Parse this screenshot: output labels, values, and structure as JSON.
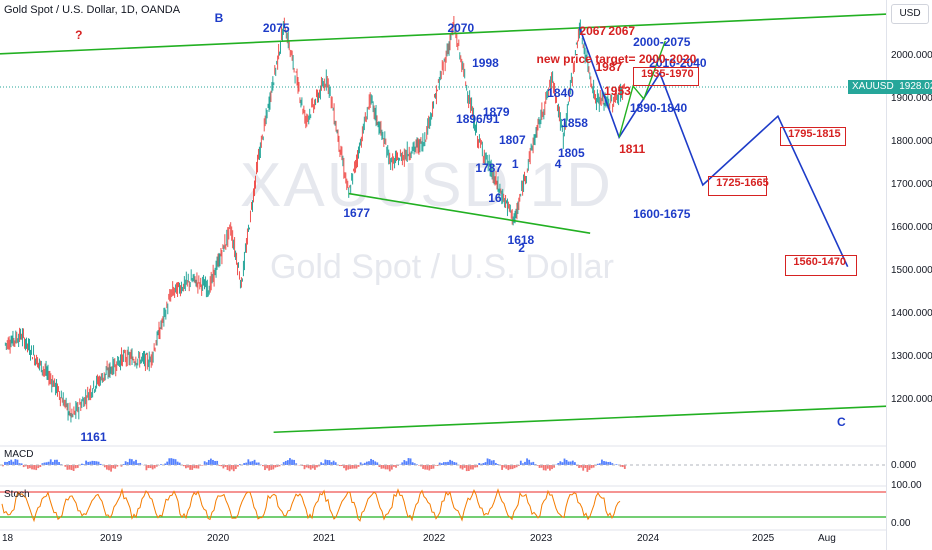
{
  "header": {
    "title": "Gold Spot / U.S. Dollar, 1D, OANDA",
    "currency_button": "USD"
  },
  "watermark": {
    "symbol": "XAUUSD 1D",
    "name": "Gold Spot / U.S. Dollar"
  },
  "current_price": {
    "symbol": "XAUUSD",
    "value": "1928.025",
    "color": "#26a69a"
  },
  "colors": {
    "up": "#26a69a",
    "down": "#ef5350",
    "trend_line": "#22b022",
    "projection": "#1e3cc8",
    "annotation_red": "#d62222"
  },
  "chart_data": {
    "type": "line",
    "title": "Gold Spot / U.S. Dollar, 1D, OANDA",
    "y_axis": {
      "ylim": [
        1125,
        2110
      ],
      "ticks": [
        "2000.000",
        "1900.000",
        "1800.000",
        "1700.000",
        "1600.000",
        "1500.000",
        "1400.000",
        "1300.000",
        "1200.000"
      ]
    },
    "x_axis": {
      "ticks": [
        "18",
        "2019",
        "2020",
        "2021",
        "2022",
        "2023",
        "2024",
        "2025",
        "Aug"
      ]
    },
    "price_swings": [
      {
        "t": 2018.0,
        "v": 1330
      },
      {
        "t": 2018.15,
        "v": 1350
      },
      {
        "t": 2018.3,
        "v": 1290
      },
      {
        "t": 2018.45,
        "v": 1240
      },
      {
        "t": 2018.62,
        "v": 1161
      },
      {
        "t": 2018.85,
        "v": 1240
      },
      {
        "t": 2019.1,
        "v": 1300
      },
      {
        "t": 2019.35,
        "v": 1290
      },
      {
        "t": 2019.55,
        "v": 1450
      },
      {
        "t": 2019.75,
        "v": 1480
      },
      {
        "t": 2019.9,
        "v": 1460
      },
      {
        "t": 2020.1,
        "v": 1600
      },
      {
        "t": 2020.2,
        "v": 1470
      },
      {
        "t": 2020.35,
        "v": 1750
      },
      {
        "t": 2020.6,
        "v": 2075
      },
      {
        "t": 2020.8,
        "v": 1850
      },
      {
        "t": 2021.0,
        "v": 1950
      },
      {
        "t": 2021.2,
        "v": 1677
      },
      {
        "t": 2021.4,
        "v": 1900
      },
      {
        "t": 2021.6,
        "v": 1750
      },
      {
        "t": 2021.9,
        "v": 1800
      },
      {
        "t": 2022.18,
        "v": 2070
      },
      {
        "t": 2022.4,
        "v": 1810
      },
      {
        "t": 2022.6,
        "v": 1690
      },
      {
        "t": 2022.75,
        "v": 1618
      },
      {
        "t": 2022.9,
        "v": 1780
      },
      {
        "t": 2023.1,
        "v": 1950
      },
      {
        "t": 2023.2,
        "v": 1810
      },
      {
        "t": 2023.35,
        "v": 2067
      },
      {
        "t": 2023.5,
        "v": 1900
      },
      {
        "t": 2023.65,
        "v": 1890
      },
      {
        "t": 2023.78,
        "v": 1928
      }
    ],
    "projection_path": [
      {
        "t": 2023.35,
        "v": 2067
      },
      {
        "t": 2023.72,
        "v": 1811
      },
      {
        "t": 2024.1,
        "v": 1960
      },
      {
        "t": 2024.5,
        "v": 1700
      },
      {
        "t": 2025.2,
        "v": 1860
      },
      {
        "t": 2025.85,
        "v": 1510
      }
    ],
    "alt_projection_path": [
      {
        "t": 2023.72,
        "v": 1811
      },
      {
        "t": 2023.85,
        "v": 1930
      },
      {
        "t": 2023.95,
        "v": 1900
      },
      {
        "t": 2024.15,
        "v": 2035
      }
    ],
    "trend_lines": [
      {
        "from": {
          "t": 2017.95,
          "v": 2005
        },
        "to": {
          "t": 2026.45,
          "v": 2100
        }
      },
      {
        "from": {
          "t": 2021.2,
          "v": 1680
        },
        "to": {
          "t": 2023.45,
          "v": 1588
        }
      },
      {
        "from": {
          "t": 2020.5,
          "v": 1125
        },
        "to": {
          "t": 2026.45,
          "v": 1188
        }
      }
    ],
    "target_boxes": [
      {
        "label": "1935-1970",
        "t0": 2023.85,
        "t1": 2024.45,
        "v0": 1934,
        "v1": 1974
      },
      {
        "label": "1725-1665",
        "t0": 2024.55,
        "t1": 2025.08,
        "v0": 1678,
        "v1": 1720
      },
      {
        "label": "1795-1815",
        "t0": 2025.22,
        "t1": 2025.82,
        "v0": 1795,
        "v1": 1835
      },
      {
        "label": "1560-1470",
        "t0": 2025.27,
        "t1": 2025.92,
        "v0": 1492,
        "v1": 1537
      }
    ],
    "annotations_blue": [
      {
        "text": "B",
        "t": 2019.95,
        "v": 2105
      },
      {
        "text": "2075",
        "t": 2020.4,
        "v": 2082
      },
      {
        "text": "2070",
        "t": 2022.12,
        "v": 2082
      },
      {
        "text": "1998",
        "t": 2022.35,
        "v": 2000
      },
      {
        "text": "1879",
        "t": 2022.45,
        "v": 1885
      },
      {
        "text": "1896/91",
        "t": 2022.2,
        "v": 1870
      },
      {
        "text": "1807",
        "t": 2022.6,
        "v": 1820
      },
      {
        "text": "1787",
        "t": 2022.38,
        "v": 1755
      },
      {
        "text": "1",
        "t": 2022.72,
        "v": 1765
      },
      {
        "text": "1677",
        "t": 2021.15,
        "v": 1652
      },
      {
        "text": "16",
        "t": 2022.5,
        "v": 1685
      },
      {
        "text": "1618",
        "t": 2022.68,
        "v": 1588
      },
      {
        "text": "2",
        "t": 2022.78,
        "v": 1570
      },
      {
        "text": "4",
        "t": 2023.12,
        "v": 1765
      },
      {
        "text": "1805",
        "t": 2023.15,
        "v": 1790
      },
      {
        "text": "1858",
        "t": 2023.18,
        "v": 1860
      },
      {
        "text": "1840",
        "t": 2023.05,
        "v": 1930
      },
      {
        "text": "1890-1840",
        "t": 2023.82,
        "v": 1895
      },
      {
        "text": "2000-2075",
        "t": 2023.85,
        "v": 2050
      },
      {
        "text": "2010-2040",
        "t": 2024.0,
        "v": 2000
      },
      {
        "text": "1600-1675",
        "t": 2023.85,
        "v": 1650
      },
      {
        "text": "1161",
        "t": 2018.7,
        "v": 1130
      },
      {
        "text": "C",
        "t": 2025.75,
        "v": 1165
      }
    ],
    "annotations_red": [
      {
        "text": "?",
        "t": 2018.65,
        "v": 2065
      },
      {
        "text": "2067",
        "t": 2023.35,
        "v": 2075
      },
      {
        "text": "2067",
        "t": 2023.62,
        "v": 2075
      },
      {
        "text": "1987",
        "t": 2023.5,
        "v": 1990
      },
      {
        "text": "1953",
        "t": 2023.58,
        "v": 1935
      },
      {
        "text": "1811",
        "t": 2023.72,
        "v": 1800
      },
      {
        "text": "new price target= 2000-2020",
        "t": 2022.95,
        "v": 2010
      }
    ]
  },
  "macd_pane": {
    "label": "MACD",
    "ticks": [
      "0.000"
    ]
  },
  "stoch_pane": {
    "label": "Stoch",
    "ticks": [
      "100.00",
      "0.00"
    ]
  }
}
